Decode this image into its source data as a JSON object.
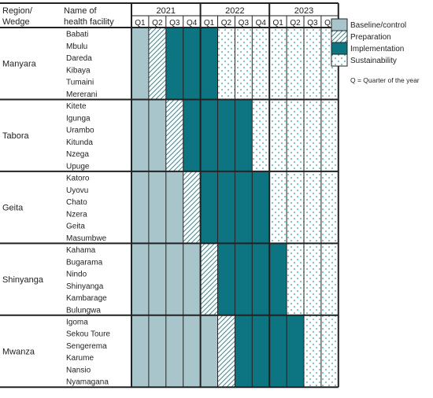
{
  "header": {
    "region_line1": "Region/",
    "region_line2": "Wedge",
    "facility_line1": "Name of",
    "facility_line2": "health facility"
  },
  "years": [
    "2021",
    "2022",
    "2023"
  ],
  "quarters": [
    "Q1",
    "Q2",
    "Q3",
    "Q4"
  ],
  "phases": {
    "B": {
      "label": "Baseline/control",
      "color": "#a8c5cc"
    },
    "P": {
      "label": "Preparation",
      "color": "#2b8f98"
    },
    "I": {
      "label": "Implementation",
      "color": "#0d7482"
    },
    "S": {
      "label": "Sustainability",
      "color": "#2b9aa3"
    }
  },
  "legend_order": [
    "B",
    "P",
    "I",
    "S"
  ],
  "note": "Q = Quarter of the year",
  "regions": [
    {
      "name": "Manyara",
      "facilities": [
        "Babati",
        "Mbulu",
        "Dareda",
        "Kibaya",
        "Tumaini",
        "Mererani"
      ],
      "schedule": [
        "B",
        "P",
        "I",
        "I",
        "I",
        "S",
        "S",
        "S",
        "S",
        "S",
        "S",
        "S"
      ]
    },
    {
      "name": "Tabora",
      "facilities": [
        "Kitete",
        "Igunga",
        "Urambo",
        "Kitunda",
        "Nzega",
        "Upuge"
      ],
      "schedule": [
        "B",
        "B",
        "P",
        "I",
        "I",
        "I",
        "I",
        "S",
        "S",
        "S",
        "S",
        "S"
      ]
    },
    {
      "name": "Geita",
      "facilities": [
        "Katoro",
        "Uyovu",
        "Chato",
        "Nzera",
        "Geita",
        "Masumbwe"
      ],
      "schedule": [
        "B",
        "B",
        "B",
        "P",
        "I",
        "I",
        "I",
        "I",
        "S",
        "S",
        "S",
        "S"
      ]
    },
    {
      "name": "Shinyanga",
      "facilities": [
        "Kahama",
        "Bugarama",
        "Nindo",
        "Shinyanga",
        "Kambarage",
        "Bulungwa"
      ],
      "schedule": [
        "B",
        "B",
        "B",
        "B",
        "P",
        "I",
        "I",
        "I",
        "I",
        "S",
        "S",
        "S"
      ]
    },
    {
      "name": "Mwanza",
      "facilities": [
        "Igoma",
        "Sekou Toure",
        "Sengerema",
        "Karume",
        "Nansio",
        "Nyamagana"
      ],
      "schedule": [
        "B",
        "B",
        "B",
        "B",
        "B",
        "P",
        "I",
        "I",
        "I",
        "I",
        "S",
        "S"
      ]
    }
  ]
}
